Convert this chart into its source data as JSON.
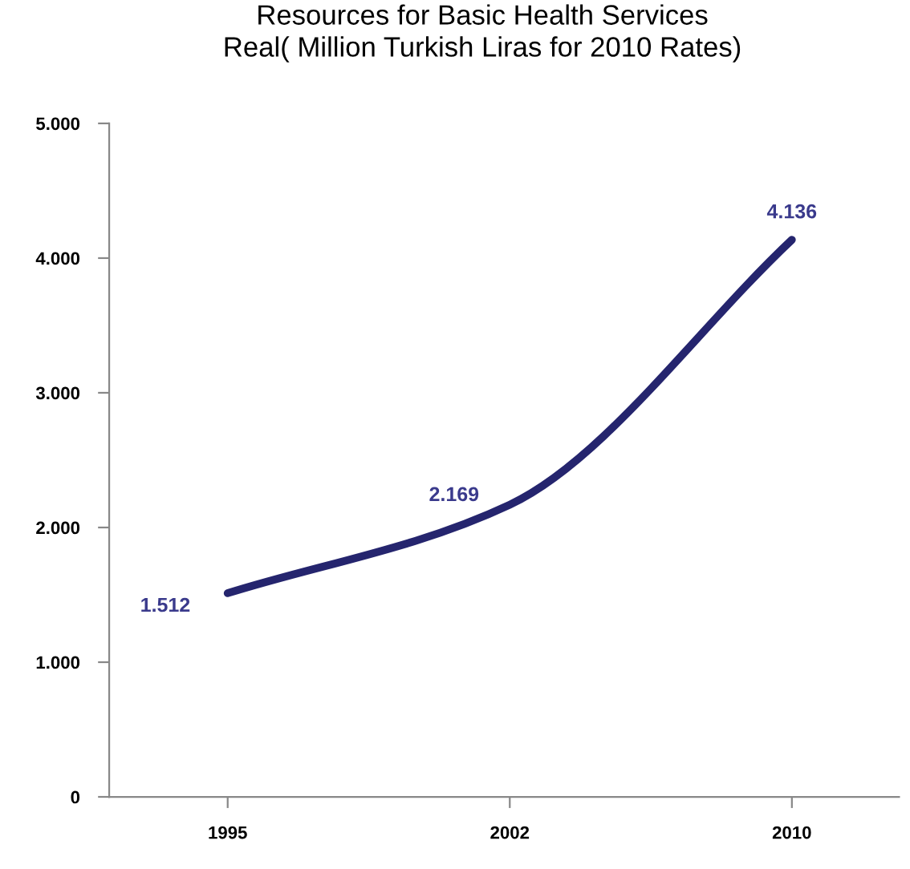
{
  "chart_data": {
    "type": "line",
    "title": "Resources for Basic Health Services\nReal( Million Turkish Liras for 2010 Rates)",
    "categories": [
      "1995",
      "2002",
      "2010"
    ],
    "series": [
      {
        "color": "#25256e",
        "values": [
          1512,
          2169,
          4136
        ],
        "value_labels": [
          "1.512",
          "2.169",
          "4.136"
        ]
      }
    ],
    "ylim": [
      0,
      5000
    ],
    "yticks": [
      {
        "value": 0,
        "label": "0"
      },
      {
        "value": 1000,
        "label": "1.000"
      },
      {
        "value": 2000,
        "label": "2.000"
      },
      {
        "value": 3000,
        "label": "3.000"
      },
      {
        "value": 4000,
        "label": "4.000"
      },
      {
        "value": 5000,
        "label": "5.000"
      }
    ],
    "grid": false,
    "legend": false,
    "marker": "none",
    "line_style": "solid"
  }
}
